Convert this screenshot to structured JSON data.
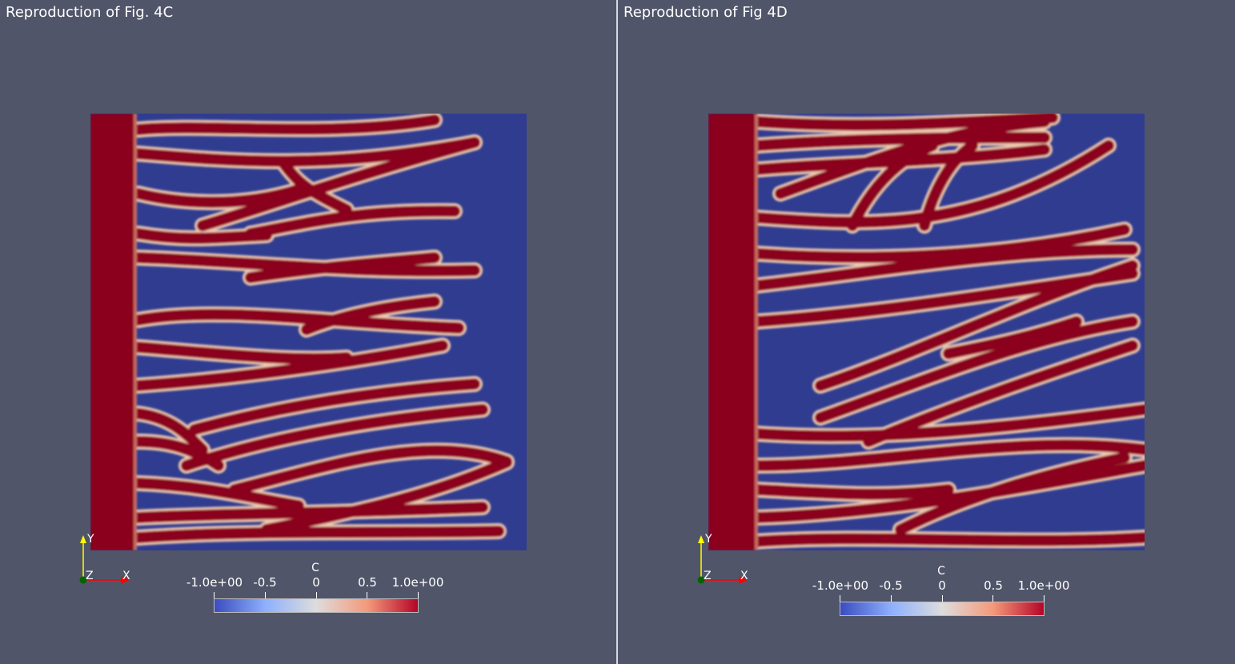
{
  "views": [
    {
      "title": "Reproduction of Fig. 4C",
      "colorbar": {
        "title": "C",
        "ticks": [
          "-1.0e+00",
          "-0.5",
          "0",
          "0.5",
          "1.0e+00"
        ],
        "range": [
          -1.0,
          1.0
        ]
      },
      "axes": {
        "x": "X",
        "y": "Y",
        "z": "Z"
      }
    },
    {
      "title": "Reproduction of Fig 4D",
      "colorbar": {
        "title": "C",
        "ticks": [
          "-1.0e+00",
          "-0.5",
          "0",
          "0.5",
          "1.0e+00"
        ],
        "range": [
          -1.0,
          1.0
        ]
      },
      "axes": {
        "x": "X",
        "y": "Y",
        "z": "Z"
      }
    }
  ],
  "colors": {
    "background": "#515569",
    "field_low": "#303c8f",
    "field_high": "#8b001c",
    "colormap": [
      "#3b4cc0",
      "#8db0fe",
      "#dddddd",
      "#f49a7b",
      "#b40426"
    ],
    "axis_x": "#ff0000",
    "axis_y": "#ffff00",
    "axis_origin": "#006400"
  }
}
